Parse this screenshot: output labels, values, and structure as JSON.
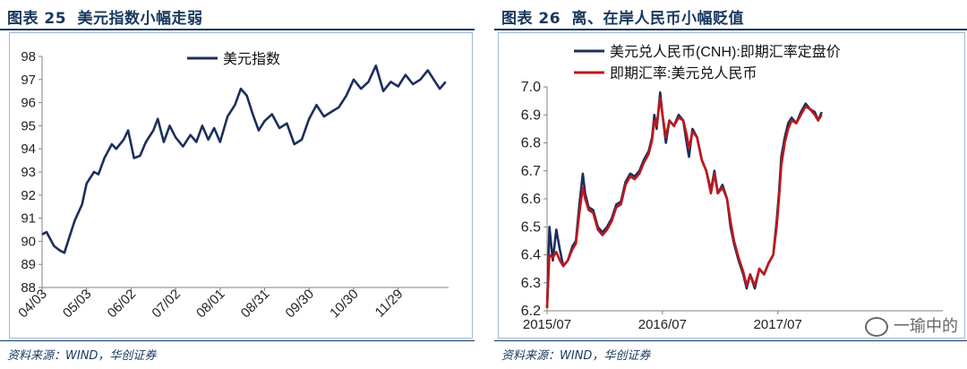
{
  "left": {
    "title_num": "图表 25",
    "title_text": "美元指数小幅走弱",
    "source": "资料来源：WIND，华创证券"
  },
  "right": {
    "title_num": "图表 26",
    "title_text": "离、在岸人民币小幅贬值",
    "source": "资料来源：WIND，华创证券"
  },
  "watermark": "一瑜中的",
  "chart_data": [
    {
      "type": "line",
      "title": "",
      "xlabel": "",
      "ylabel": "",
      "ylim": [
        88,
        98
      ],
      "yticks": [
        88,
        89,
        90,
        91,
        92,
        93,
        94,
        95,
        96,
        97,
        98
      ],
      "grid": false,
      "legend_position": "top-center",
      "x_tick_labels": [
        "04/03",
        "05/03",
        "06/02",
        "07/02",
        "08/01",
        "08/31",
        "09/30",
        "10/30",
        "11/29"
      ],
      "x_tick_index": [
        0,
        30,
        60,
        90,
        120,
        150,
        180,
        210,
        240
      ],
      "x_count": 275,
      "series": [
        {
          "name": "美元指数",
          "color": "#1c2e5c",
          "points": [
            [
              0,
              90.3
            ],
            [
              3,
              90.4
            ],
            [
              8,
              89.8
            ],
            [
              12,
              89.6
            ],
            [
              15,
              89.5
            ],
            [
              18,
              90.1
            ],
            [
              22,
              90.9
            ],
            [
              27,
              91.6
            ],
            [
              30,
              92.5
            ],
            [
              35,
              93.0
            ],
            [
              38,
              92.9
            ],
            [
              42,
              93.6
            ],
            [
              47,
              94.2
            ],
            [
              50,
              94.0
            ],
            [
              55,
              94.4
            ],
            [
              58,
              94.8
            ],
            [
              62,
              93.6
            ],
            [
              66,
              93.7
            ],
            [
              70,
              94.3
            ],
            [
              75,
              94.8
            ],
            [
              78,
              95.3
            ],
            [
              82,
              94.3
            ],
            [
              86,
              95.0
            ],
            [
              90,
              94.5
            ],
            [
              95,
              94.1
            ],
            [
              100,
              94.6
            ],
            [
              104,
              94.3
            ],
            [
              108,
              95.0
            ],
            [
              112,
              94.4
            ],
            [
              116,
              94.9
            ],
            [
              120,
              94.3
            ],
            [
              125,
              95.4
            ],
            [
              130,
              95.9
            ],
            [
              134,
              96.6
            ],
            [
              138,
              96.3
            ],
            [
              142,
              95.5
            ],
            [
              146,
              94.8
            ],
            [
              150,
              95.2
            ],
            [
              155,
              95.5
            ],
            [
              160,
              94.9
            ],
            [
              165,
              95.1
            ],
            [
              170,
              94.2
            ],
            [
              175,
              94.4
            ],
            [
              180,
              95.3
            ],
            [
              185,
              95.9
            ],
            [
              190,
              95.4
            ],
            [
              195,
              95.6
            ],
            [
              200,
              95.8
            ],
            [
              205,
              96.3
            ],
            [
              210,
              97.0
            ],
            [
              215,
              96.6
            ],
            [
              220,
              96.9
            ],
            [
              225,
              97.6
            ],
            [
              230,
              96.5
            ],
            [
              235,
              96.9
            ],
            [
              240,
              96.7
            ],
            [
              245,
              97.2
            ],
            [
              250,
              96.8
            ],
            [
              255,
              97.0
            ],
            [
              260,
              97.4
            ],
            [
              265,
              96.9
            ],
            [
              268,
              96.6
            ],
            [
              272,
              96.9
            ]
          ]
        }
      ]
    },
    {
      "type": "line",
      "title": "",
      "xlabel": "",
      "ylabel": "",
      "ylim": [
        6.2,
        7.0
      ],
      "yticks": [
        6.2,
        6.3,
        6.4,
        6.5,
        6.6,
        6.7,
        6.8,
        6.9,
        7.0
      ],
      "grid": false,
      "legend_position": "top-left",
      "x_tick_labels": [
        "2015/07",
        "2016/07",
        "2017/07"
      ],
      "x_tick_index": [
        0,
        100,
        200
      ],
      "x_count": 344,
      "series": [
        {
          "name": "美元兑人民币(CNH):即期汇率定盘价",
          "color": "#1c2e5c",
          "points": [
            [
              0,
              6.21
            ],
            [
              2,
              6.5
            ],
            [
              5,
              6.38
            ],
            [
              8,
              6.49
            ],
            [
              11,
              6.42
            ],
            [
              14,
              6.36
            ],
            [
              18,
              6.38
            ],
            [
              22,
              6.43
            ],
            [
              25,
              6.45
            ],
            [
              28,
              6.58
            ],
            [
              31,
              6.69
            ],
            [
              33,
              6.62
            ],
            [
              36,
              6.57
            ],
            [
              40,
              6.56
            ],
            [
              44,
              6.5
            ],
            [
              48,
              6.48
            ],
            [
              52,
              6.5
            ],
            [
              56,
              6.53
            ],
            [
              60,
              6.58
            ],
            [
              64,
              6.59
            ],
            [
              68,
              6.66
            ],
            [
              72,
              6.69
            ],
            [
              76,
              6.68
            ],
            [
              80,
              6.7
            ],
            [
              84,
              6.74
            ],
            [
              88,
              6.77
            ],
            [
              91,
              6.82
            ],
            [
              93,
              6.9
            ],
            [
              95,
              6.85
            ],
            [
              98,
              6.98
            ],
            [
              100,
              6.9
            ],
            [
              103,
              6.8
            ],
            [
              106,
              6.88
            ],
            [
              110,
              6.86
            ],
            [
              114,
              6.9
            ],
            [
              118,
              6.88
            ],
            [
              121,
              6.8
            ],
            [
              123,
              6.75
            ],
            [
              126,
              6.85
            ],
            [
              130,
              6.82
            ],
            [
              134,
              6.74
            ],
            [
              138,
              6.7
            ],
            [
              142,
              6.63
            ],
            [
              145,
              6.7
            ],
            [
              148,
              6.62
            ],
            [
              152,
              6.65
            ],
            [
              156,
              6.6
            ],
            [
              159,
              6.5
            ],
            [
              162,
              6.44
            ],
            [
              166,
              6.38
            ],
            [
              170,
              6.33
            ],
            [
              173,
              6.28
            ],
            [
              176,
              6.33
            ],
            [
              180,
              6.28
            ],
            [
              184,
              6.35
            ],
            [
              188,
              6.33
            ],
            [
              192,
              6.37
            ],
            [
              196,
              6.4
            ],
            [
              199,
              6.52
            ],
            [
              201,
              6.62
            ],
            [
              203,
              6.75
            ],
            [
              206,
              6.82
            ],
            [
              209,
              6.87
            ],
            [
              212,
              6.89
            ],
            [
              216,
              6.87
            ],
            [
              220,
              6.91
            ],
            [
              224,
              6.94
            ],
            [
              228,
              6.92
            ],
            [
              232,
              6.91
            ],
            [
              235,
              6.88
            ],
            [
              238,
              6.91
            ]
          ]
        },
        {
          "name": "即期汇率:美元兑人民币",
          "color": "#c0161c",
          "points": [
            [
              0,
              6.21
            ],
            [
              2,
              6.4
            ],
            [
              5,
              6.39
            ],
            [
              8,
              6.41
            ],
            [
              11,
              6.38
            ],
            [
              14,
              6.36
            ],
            [
              18,
              6.38
            ],
            [
              22,
              6.42
            ],
            [
              25,
              6.44
            ],
            [
              28,
              6.55
            ],
            [
              31,
              6.64
            ],
            [
              33,
              6.6
            ],
            [
              36,
              6.56
            ],
            [
              40,
              6.55
            ],
            [
              44,
              6.49
            ],
            [
              48,
              6.47
            ],
            [
              52,
              6.49
            ],
            [
              56,
              6.52
            ],
            [
              60,
              6.57
            ],
            [
              64,
              6.58
            ],
            [
              68,
              6.65
            ],
            [
              72,
              6.68
            ],
            [
              76,
              6.67
            ],
            [
              80,
              6.69
            ],
            [
              84,
              6.73
            ],
            [
              88,
              6.76
            ],
            [
              91,
              6.81
            ],
            [
              93,
              6.88
            ],
            [
              95,
              6.86
            ],
            [
              98,
              6.96
            ],
            [
              100,
              6.9
            ],
            [
              103,
              6.82
            ],
            [
              106,
              6.88
            ],
            [
              110,
              6.86
            ],
            [
              114,
              6.89
            ],
            [
              118,
              6.88
            ],
            [
              121,
              6.83
            ],
            [
              123,
              6.78
            ],
            [
              126,
              6.84
            ],
            [
              130,
              6.82
            ],
            [
              134,
              6.74
            ],
            [
              138,
              6.7
            ],
            [
              142,
              6.62
            ],
            [
              145,
              6.69
            ],
            [
              148,
              6.62
            ],
            [
              152,
              6.64
            ],
            [
              156,
              6.6
            ],
            [
              159,
              6.52
            ],
            [
              162,
              6.45
            ],
            [
              166,
              6.39
            ],
            [
              170,
              6.34
            ],
            [
              173,
              6.29
            ],
            [
              176,
              6.33
            ],
            [
              180,
              6.29
            ],
            [
              184,
              6.35
            ],
            [
              188,
              6.33
            ],
            [
              192,
              6.37
            ],
            [
              196,
              6.4
            ],
            [
              199,
              6.5
            ],
            [
              201,
              6.6
            ],
            [
              203,
              6.72
            ],
            [
              206,
              6.8
            ],
            [
              209,
              6.85
            ],
            [
              212,
              6.88
            ],
            [
              216,
              6.87
            ],
            [
              220,
              6.9
            ],
            [
              224,
              6.93
            ],
            [
              228,
              6.92
            ],
            [
              232,
              6.9
            ],
            [
              235,
              6.88
            ],
            [
              238,
              6.9
            ]
          ]
        }
      ]
    }
  ]
}
